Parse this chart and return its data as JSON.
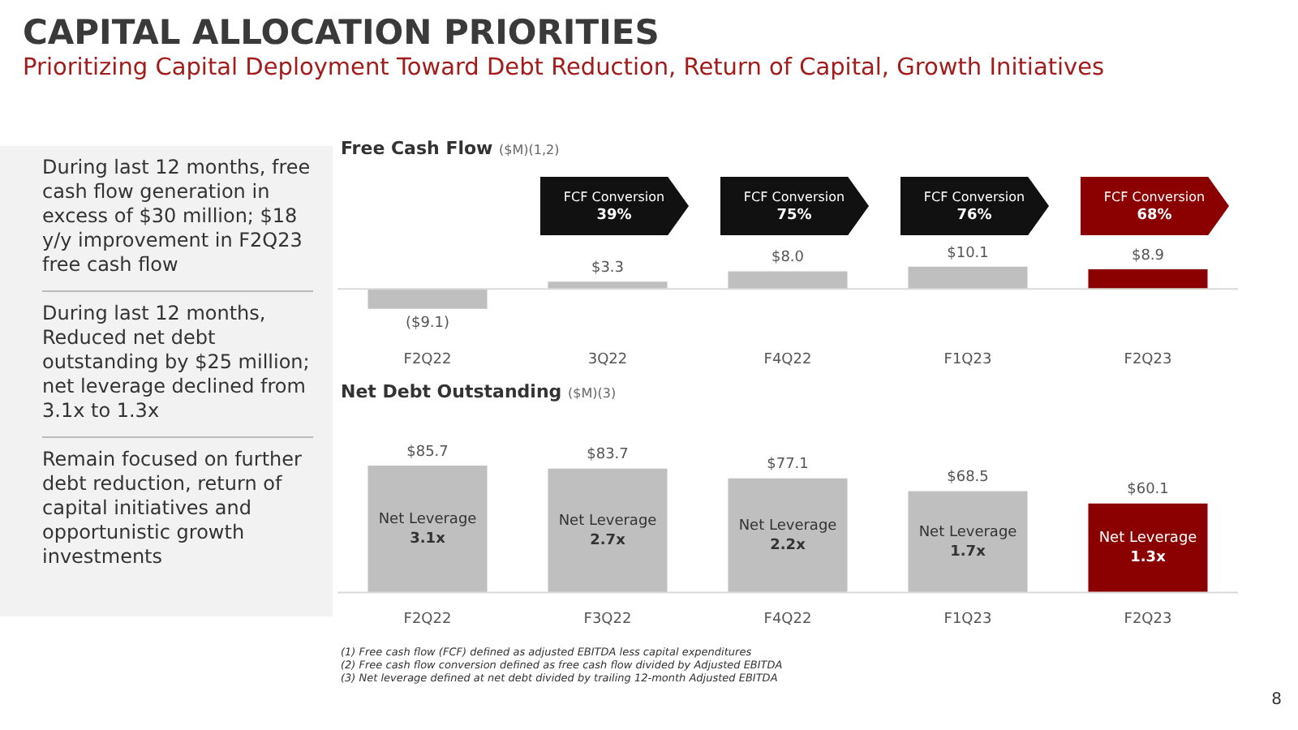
{
  "chart_data": [
    {
      "type": "other",
      "title": "CAPITAL ALLOCATION PRIORITIES",
      "subtitle": "Prioritizing Capital Deployment Toward Debt Reduction, Return of Capital, Growth Initiatives",
      "annotations": [
        "During last 12 months, free cash flow generation in excess of $30 million; $18 y/y improvement in F2Q23 free cash flow",
        "During last 12 months, Reduced net debt outstanding by $25 million; net leverage declined from 3.1x to 1.3x",
        "Remain focused on further debt reduction, return of capital initiatives and opportunistic growth investments"
      ]
    },
    {
      "type": "bar",
      "title": "Free Cash Flow",
      "subtitle": "($M)(1,2)",
      "categories": [
        "F2Q22",
        "3Q22",
        "F4Q22",
        "F1Q23",
        "F2Q23"
      ],
      "values": [
        -9.1,
        3.3,
        8.0,
        10.1,
        8.9
      ],
      "colors": [
        "#bfbfbf",
        "#bfbfbf",
        "#bfbfbf",
        "#bfbfbf",
        "#8b0000"
      ],
      "value_labels": [
        "($9.1)",
        "$3.3",
        "$8.0",
        "$10.1",
        "$8.9"
      ],
      "annotations": [
        "FCF Conversion 39%",
        "FCF Conversion 75%",
        "FCF Conversion 76%",
        "FCF Conversion 68%"
      ]
    },
    {
      "type": "bar",
      "title": "Net Debt Outstanding",
      "subtitle": "($M)(3)",
      "categories": [
        "F2Q22",
        "F3Q22",
        "F4Q22",
        "F1Q23",
        "F2Q23"
      ],
      "values": [
        85.7,
        83.7,
        77.1,
        68.5,
        60.1
      ],
      "colors": [
        "#bfbfbf",
        "#bfbfbf",
        "#bfbfbf",
        "#bfbfbf",
        "#8b0000"
      ],
      "value_labels": [
        "$85.7",
        "$83.7",
        "$77.1",
        "$68.5",
        "$60.1"
      ],
      "annotations": [
        "Net Leverage 3.1x",
        "Net Leverage 2.7x",
        "Net Leverage 2.2x",
        "Net Leverage 1.7x",
        "Net Leverage 1.3x"
      ]
    },
    {
      "type": "other",
      "annotations": [
        "(1)  Free cash flow (FCF) defined as adjusted EBITDA less capital expenditures",
        "(2)  Free cash flow conversion defined as free cash flow divided by Adjusted EBITDA",
        "(3)  Net leverage defined at net debt divided by trailing 12-month Adjusted EBITDA",
        "8"
      ]
    }
  ]
}
